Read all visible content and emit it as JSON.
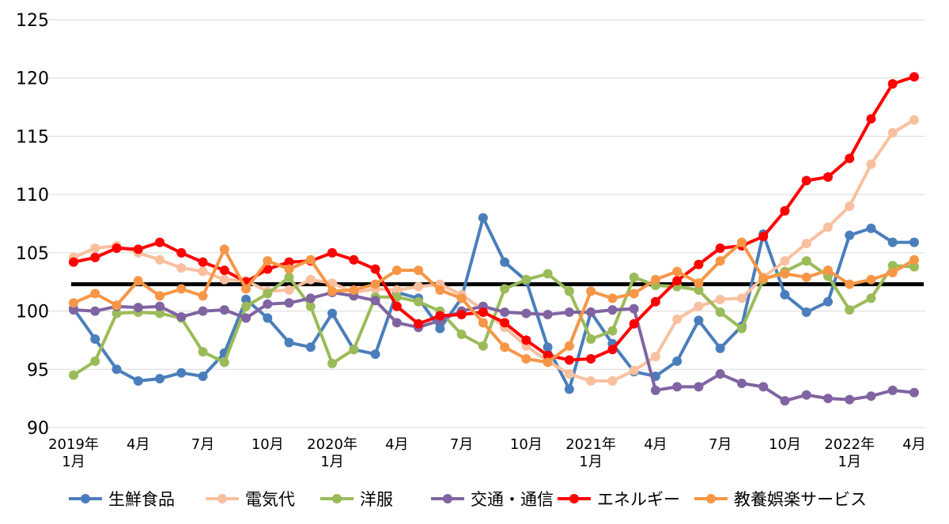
{
  "chart_data": {
    "type": "line",
    "title": "",
    "xlabel": "",
    "ylabel": "",
    "ylim": [
      90,
      125
    ],
    "yticks": [
      90,
      95,
      100,
      105,
      110,
      115,
      120,
      125
    ],
    "grid": "horizontal",
    "legend_position": "bottom",
    "reference_line": {
      "value": 102.3,
      "color": "#000000"
    },
    "x": [
      "2019-01",
      "2019-02",
      "2019-03",
      "2019-04",
      "2019-05",
      "2019-06",
      "2019-07",
      "2019-08",
      "2019-09",
      "2019-10",
      "2019-11",
      "2019-12",
      "2020-01",
      "2020-02",
      "2020-03",
      "2020-04",
      "2020-05",
      "2020-06",
      "2020-07",
      "2020-08",
      "2020-09",
      "2020-10",
      "2020-11",
      "2020-12",
      "2021-01",
      "2021-02",
      "2021-03",
      "2021-04",
      "2021-05",
      "2021-06",
      "2021-07",
      "2021-08",
      "2021-09",
      "2021-10",
      "2021-11",
      "2021-12",
      "2022-01",
      "2022-02",
      "2022-03",
      "2022-04"
    ],
    "x_tick_labels": [
      {
        "index": 0,
        "lines": [
          "2019年",
          "1月"
        ]
      },
      {
        "index": 3,
        "lines": [
          "4月"
        ]
      },
      {
        "index": 6,
        "lines": [
          "7月"
        ]
      },
      {
        "index": 9,
        "lines": [
          "10月"
        ]
      },
      {
        "index": 12,
        "lines": [
          "2020年",
          "1月"
        ]
      },
      {
        "index": 15,
        "lines": [
          "4月"
        ]
      },
      {
        "index": 18,
        "lines": [
          "7月"
        ]
      },
      {
        "index": 21,
        "lines": [
          "10月"
        ]
      },
      {
        "index": 24,
        "lines": [
          "2021年",
          "1月"
        ]
      },
      {
        "index": 27,
        "lines": [
          "4月"
        ]
      },
      {
        "index": 30,
        "lines": [
          "7月"
        ]
      },
      {
        "index": 33,
        "lines": [
          "10月"
        ]
      },
      {
        "index": 36,
        "lines": [
          "2022年",
          "1月"
        ]
      },
      {
        "index": 39,
        "lines": [
          "4月"
        ]
      }
    ],
    "series": [
      {
        "name": "生鮮食品",
        "color": "#4a7ebb",
        "values": [
          100.2,
          97.6,
          95.0,
          94.0,
          94.2,
          94.7,
          94.4,
          96.4,
          101.0,
          99.4,
          97.3,
          96.9,
          99.8,
          96.7,
          96.3,
          101.6,
          101.1,
          98.5,
          101.1,
          108.0,
          104.2,
          102.6,
          96.9,
          93.3,
          99.9,
          97.2,
          94.8,
          94.4,
          95.7,
          99.2,
          96.8,
          98.7,
          106.6,
          101.4,
          99.9,
          100.8,
          106.5,
          107.1,
          105.9,
          105.9
        ]
      },
      {
        "name": "電気代",
        "color": "#f9c09f",
        "values": [
          104.6,
          105.4,
          105.6,
          105.0,
          104.4,
          103.7,
          103.4,
          102.7,
          102.6,
          101.7,
          101.8,
          102.7,
          102.4,
          101.6,
          101.9,
          101.8,
          102.1,
          102.3,
          101.4,
          100.1,
          98.6,
          97.0,
          95.7,
          94.6,
          94.0,
          94.0,
          94.9,
          96.1,
          99.3,
          100.4,
          101.0,
          101.1,
          102.9,
          104.3,
          105.8,
          107.2,
          109.0,
          112.6,
          115.3,
          116.4
        ]
      },
      {
        "name": "洋服",
        "color": "#9bbb59",
        "values": [
          94.5,
          95.7,
          99.8,
          99.9,
          99.8,
          99.4,
          96.5,
          95.6,
          100.4,
          101.5,
          102.9,
          100.4,
          95.5,
          96.7,
          101.2,
          101.2,
          100.8,
          100.0,
          98.0,
          97.0,
          101.9,
          102.7,
          103.2,
          101.7,
          97.6,
          98.3,
          102.9,
          102.2,
          102.1,
          101.8,
          99.9,
          98.5,
          102.7,
          103.4,
          104.3,
          103.0,
          100.1,
          101.1,
          103.9,
          103.8
        ]
      },
      {
        "name": "交通・通信",
        "color": "#8064a2",
        "values": [
          100.1,
          100.0,
          100.4,
          100.3,
          100.4,
          99.5,
          100.0,
          100.1,
          99.4,
          100.6,
          100.7,
          101.1,
          101.6,
          101.3,
          100.9,
          99.0,
          98.6,
          99.2,
          100.0,
          100.4,
          99.9,
          99.8,
          99.7,
          99.9,
          99.9,
          100.1,
          100.2,
          93.2,
          93.5,
          93.5,
          94.6,
          93.8,
          93.5,
          92.3,
          92.8,
          92.5,
          92.4,
          92.7,
          93.2,
          93.0
        ]
      },
      {
        "name": "エネルギー",
        "color": "#ff0000",
        "values": [
          104.2,
          104.6,
          105.4,
          105.3,
          105.9,
          105.0,
          104.2,
          103.5,
          102.5,
          103.6,
          104.2,
          104.3,
          105.0,
          104.4,
          103.6,
          100.4,
          98.9,
          99.6,
          99.7,
          99.9,
          99.0,
          97.5,
          96.2,
          95.8,
          95.9,
          96.7,
          98.9,
          100.8,
          102.6,
          104.0,
          105.4,
          105.6,
          106.4,
          108.6,
          111.2,
          111.5,
          113.1,
          116.5,
          119.5,
          120.1
        ]
      },
      {
        "name": "教養娯楽サービス",
        "color": "#f79646",
        "values": [
          100.7,
          101.5,
          100.5,
          102.6,
          101.3,
          101.9,
          101.3,
          105.3,
          101.9,
          104.3,
          103.6,
          104.4,
          101.7,
          101.8,
          102.3,
          103.5,
          103.5,
          101.8,
          101.1,
          99.0,
          96.9,
          95.9,
          95.6,
          97.0,
          101.7,
          101.1,
          101.5,
          102.7,
          103.4,
          102.4,
          104.3,
          105.9,
          102.8,
          103.2,
          102.9,
          103.5,
          102.3,
          102.7,
          103.3,
          104.4
        ]
      }
    ]
  }
}
